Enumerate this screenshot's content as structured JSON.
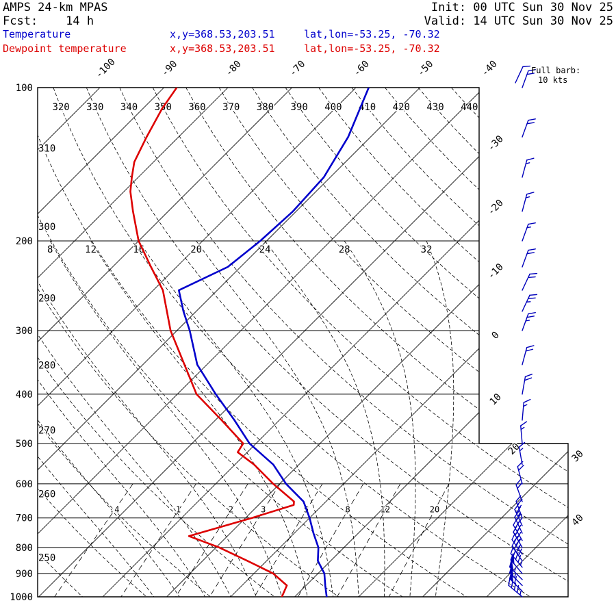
{
  "header": {
    "model": "AMPS 24-km MPAS",
    "fcst": "Fcst:    14 h",
    "init": "Init: 00 UTC Sun 30 Nov 25",
    "valid": "Valid: 14 UTC Sun 30 Nov 25"
  },
  "legend": {
    "temperature": {
      "label": "Temperature",
      "xy": "x,y=368.53,203.51",
      "latlon": "lat,lon=-53.25, -70.32"
    },
    "dewpoint": {
      "label": "Dewpoint temperature",
      "xy": "x,y=368.53,203.51",
      "latlon": "lat,lon=-53.25, -70.32"
    }
  },
  "barb_legend": {
    "line1": "Full barb:",
    "line2": "10 kts"
  },
  "colors": {
    "temperature": "#0000cc",
    "dewpoint": "#dd0000",
    "wind": "#0000bb",
    "lines": "#000000"
  },
  "chart_data": {
    "type": "line",
    "chart": "skew-T log-p atmospheric sounding",
    "pressure_axis": {
      "scale": "log",
      "levels_hPa": [
        100,
        200,
        300,
        400,
        500,
        600,
        700,
        800,
        900,
        1000
      ]
    },
    "isotherm_range_C": [
      -120,
      40,
      10
    ],
    "isotherm_labels_top": [
      -100,
      -90,
      -80,
      -70,
      -60,
      -50,
      -40
    ],
    "isotherm_labels_right": [
      -30,
      -20,
      -10,
      0,
      10,
      20,
      30,
      40
    ],
    "dry_adiabats_theta_K": [
      250,
      260,
      270,
      280,
      290,
      300,
      310,
      320,
      330,
      340,
      350,
      360,
      370,
      380,
      390,
      400,
      410,
      420,
      430,
      440
    ],
    "dry_adiabat_labels_top": [
      320,
      330,
      340,
      350,
      360,
      370,
      380,
      390,
      400,
      410,
      420,
      430,
      440
    ],
    "dry_adiabat_labels_left": [
      310,
      300,
      290,
      280,
      270,
      260,
      250
    ],
    "moist_adiabats_thetaw_C": [
      -12,
      -8,
      -4,
      0,
      4,
      8,
      12,
      16,
      20,
      24,
      28,
      32
    ],
    "moist_adiabat_labels": [
      8,
      12,
      16,
      20,
      24,
      28,
      32
    ],
    "mixing_ratio_values_gkg": [
      0.4,
      1,
      2,
      3,
      5,
      8,
      12,
      20
    ],
    "mixing_ratio_labels": [
      ".4",
      "1",
      "2",
      "3",
      "5",
      "8",
      "12",
      "20"
    ],
    "temperature_profile": {
      "name": "Temperature",
      "points_p_T": [
        [
          100,
          -58
        ],
        [
          125,
          -53.5
        ],
        [
          150,
          -51
        ],
        [
          175,
          -50.5
        ],
        [
          200,
          -51
        ],
        [
          225,
          -52
        ],
        [
          250,
          -56
        ],
        [
          275,
          -52
        ],
        [
          300,
          -48
        ],
        [
          350,
          -41.5
        ],
        [
          400,
          -34
        ],
        [
          450,
          -27
        ],
        [
          500,
          -21
        ],
        [
          550,
          -14
        ],
        [
          600,
          -9
        ],
        [
          650,
          -3.5
        ],
        [
          700,
          0
        ],
        [
          750,
          3
        ],
        [
          800,
          6
        ],
        [
          850,
          8
        ],
        [
          900,
          11
        ],
        [
          950,
          13
        ],
        [
          1000,
          15
        ]
      ]
    },
    "dewpoint_profile": {
      "name": "Dewpoint temperature",
      "points_p_T": [
        [
          100,
          -88
        ],
        [
          110,
          -87
        ],
        [
          125,
          -85
        ],
        [
          140,
          -83
        ],
        [
          150,
          -81
        ],
        [
          160,
          -79
        ],
        [
          175,
          -75.5
        ],
        [
          200,
          -70
        ],
        [
          225,
          -64
        ],
        [
          250,
          -58.5
        ],
        [
          300,
          -51
        ],
        [
          350,
          -43.5
        ],
        [
          400,
          -37
        ],
        [
          450,
          -29
        ],
        [
          500,
          -22
        ],
        [
          520,
          -21.5
        ],
        [
          550,
          -17
        ],
        [
          600,
          -11
        ],
        [
          650,
          -5
        ],
        [
          660,
          -4.5
        ],
        [
          700,
          -9
        ],
        [
          760,
          -16
        ],
        [
          800,
          -9.5
        ],
        [
          850,
          -3
        ],
        [
          900,
          3
        ],
        [
          950,
          7
        ],
        [
          1000,
          8
        ]
      ]
    },
    "wind_barbs": {
      "full_barb_kt": 10,
      "levels_p_spd_dir": [
        [
          100,
          20,
          20
        ],
        [
          125,
          20,
          20
        ],
        [
          150,
          15,
          15
        ],
        [
          175,
          15,
          15
        ],
        [
          200,
          15,
          20
        ],
        [
          225,
          20,
          20
        ],
        [
          250,
          20,
          25
        ],
        [
          275,
          25,
          25
        ],
        [
          300,
          25,
          20
        ],
        [
          350,
          20,
          15
        ],
        [
          400,
          20,
          10
        ],
        [
          450,
          15,
          5
        ],
        [
          500,
          15,
          355
        ],
        [
          550,
          15,
          350
        ],
        [
          600,
          20,
          345
        ],
        [
          650,
          20,
          340
        ],
        [
          700,
          25,
          340
        ],
        [
          725,
          25,
          335
        ],
        [
          750,
          30,
          335
        ],
        [
          775,
          30,
          330
        ],
        [
          800,
          35,
          330
        ],
        [
          825,
          35,
          325
        ],
        [
          850,
          40,
          325
        ],
        [
          875,
          45,
          320
        ],
        [
          900,
          50,
          320
        ],
        [
          925,
          55,
          315
        ],
        [
          950,
          55,
          315
        ],
        [
          975,
          60,
          315
        ],
        [
          1000,
          45,
          310
        ]
      ]
    }
  }
}
